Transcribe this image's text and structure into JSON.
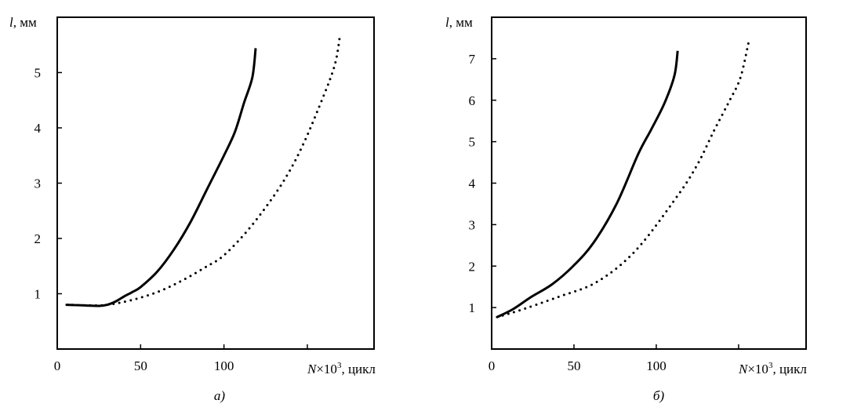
{
  "chart_data": [
    {
      "type": "line",
      "panel_label": "а)",
      "ylabel_var": "l",
      "ylabel_unit": ", мм",
      "xlabel_var": "N",
      "xlabel_rest": "×10",
      "xlabel_sup": "3",
      "xlabel_unit": ", цикл",
      "xlim": [
        0,
        190
      ],
      "ylim": [
        0,
        6
      ],
      "xticks": [
        0,
        50,
        100,
        150
      ],
      "xtick_labels": [
        "0",
        "50",
        "100"
      ],
      "yticks": [
        1,
        2,
        3,
        4,
        5
      ],
      "ytick_labels": [
        "1",
        "2",
        "3",
        "4",
        "5"
      ],
      "grid": false,
      "series": [
        {
          "name": "solid",
          "style": "solid",
          "x": [
            5.6,
            15,
            25,
            30,
            35,
            40,
            45,
            50,
            60,
            70,
            80,
            90,
            100,
            106.6,
            112,
            117,
            119
          ],
          "y": [
            0.8,
            0.79,
            0.78,
            0.8,
            0.86,
            0.95,
            1.03,
            1.12,
            1.4,
            1.8,
            2.3,
            2.9,
            3.5,
            3.93,
            4.45,
            4.91,
            5.44
          ]
        },
        {
          "name": "dotted",
          "style": "dotted",
          "x": [
            5.6,
            20,
            30,
            44,
            60,
            75,
            90,
            98.6,
            110,
            122,
            135,
            145.6,
            156,
            166,
            169.5
          ],
          "y": [
            0.8,
            0.79,
            0.8,
            0.88,
            1.03,
            1.24,
            1.5,
            1.66,
            2.0,
            2.44,
            3.0,
            3.58,
            4.3,
            5.09,
            5.65
          ]
        }
      ]
    },
    {
      "type": "line",
      "panel_label": "б)",
      "ylabel_var": "l",
      "ylabel_unit": ", мм",
      "xlabel_var": "N",
      "xlabel_rest": "×10",
      "xlabel_sup": "3",
      "xlabel_unit": ", цикл",
      "xlim": [
        0,
        191
      ],
      "ylim": [
        0,
        8
      ],
      "xticks": [
        0,
        50,
        100,
        150
      ],
      "xtick_labels": [
        "0",
        "50",
        "100"
      ],
      "yticks": [
        1,
        2,
        3,
        4,
        5,
        6,
        7
      ],
      "ytick_labels": [
        "1",
        "2",
        "3",
        "4",
        "5",
        "6",
        "7"
      ],
      "grid": false,
      "series": [
        {
          "name": "solid",
          "style": "solid",
          "x": [
            3.3,
            12.9,
            23.8,
            36.7,
            49.5,
            62,
            76,
            89,
            97,
            105,
            111,
            113
          ],
          "y": [
            0.77,
            0.96,
            1.25,
            1.56,
            2.0,
            2.57,
            3.51,
            4.7,
            5.3,
            5.93,
            6.59,
            7.19
          ]
        },
        {
          "name": "dotted",
          "style": "dotted",
          "x": [
            3.3,
            16,
            40,
            64,
            87.6,
            113,
            125,
            135,
            144,
            151,
            156
          ],
          "y": [
            0.77,
            0.92,
            1.25,
            1.62,
            2.38,
            3.7,
            4.45,
            5.26,
            5.95,
            6.53,
            7.38
          ]
        }
      ]
    }
  ]
}
